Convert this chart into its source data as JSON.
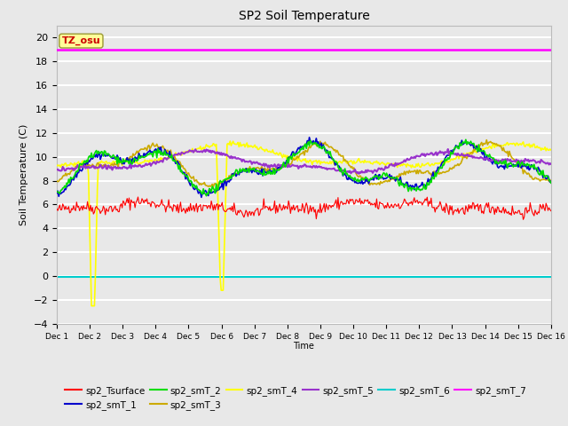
{
  "title": "SP2 Soil Temperature",
  "ylabel": "Soil Temperature (C)",
  "xlabel": "Time",
  "xlim_days": [
    0,
    15
  ],
  "ylim": [
    -4,
    21
  ],
  "yticks": [
    -4,
    -2,
    0,
    2,
    4,
    6,
    8,
    10,
    12,
    14,
    16,
    18,
    20
  ],
  "xtick_labels": [
    "Dec 1",
    "Dec 2",
    "Dec 3",
    "Dec 4",
    "Dec 5",
    "Dec 6",
    "Dec 7",
    "Dec 8",
    "Dec 9",
    "Dec 10",
    "Dec 11",
    "Dec 12",
    "Dec 13",
    "Dec 14",
    "Dec 15",
    "Dec 16"
  ],
  "bg_color": "#e8e8e8",
  "plot_bg_color": "#e8e8e8",
  "grid_color": "white",
  "tz_label": "TZ_osu",
  "tz_box_color": "#ffff99",
  "tz_text_color": "#cc0000",
  "series_colors": {
    "sp2_Tsurface": "#ff0000",
    "sp2_smT_1": "#0000cc",
    "sp2_smT_2": "#00dd00",
    "sp2_smT_3": "#ccaa00",
    "sp2_smT_4": "#ffff00",
    "sp2_smT_5": "#9933cc",
    "sp2_smT_6": "#00cccc",
    "sp2_smT_7": "#ff00ff"
  },
  "sp2_smT_7_value": 19.0,
  "sp2_smT_6_value": -0.05,
  "num_points": 500
}
